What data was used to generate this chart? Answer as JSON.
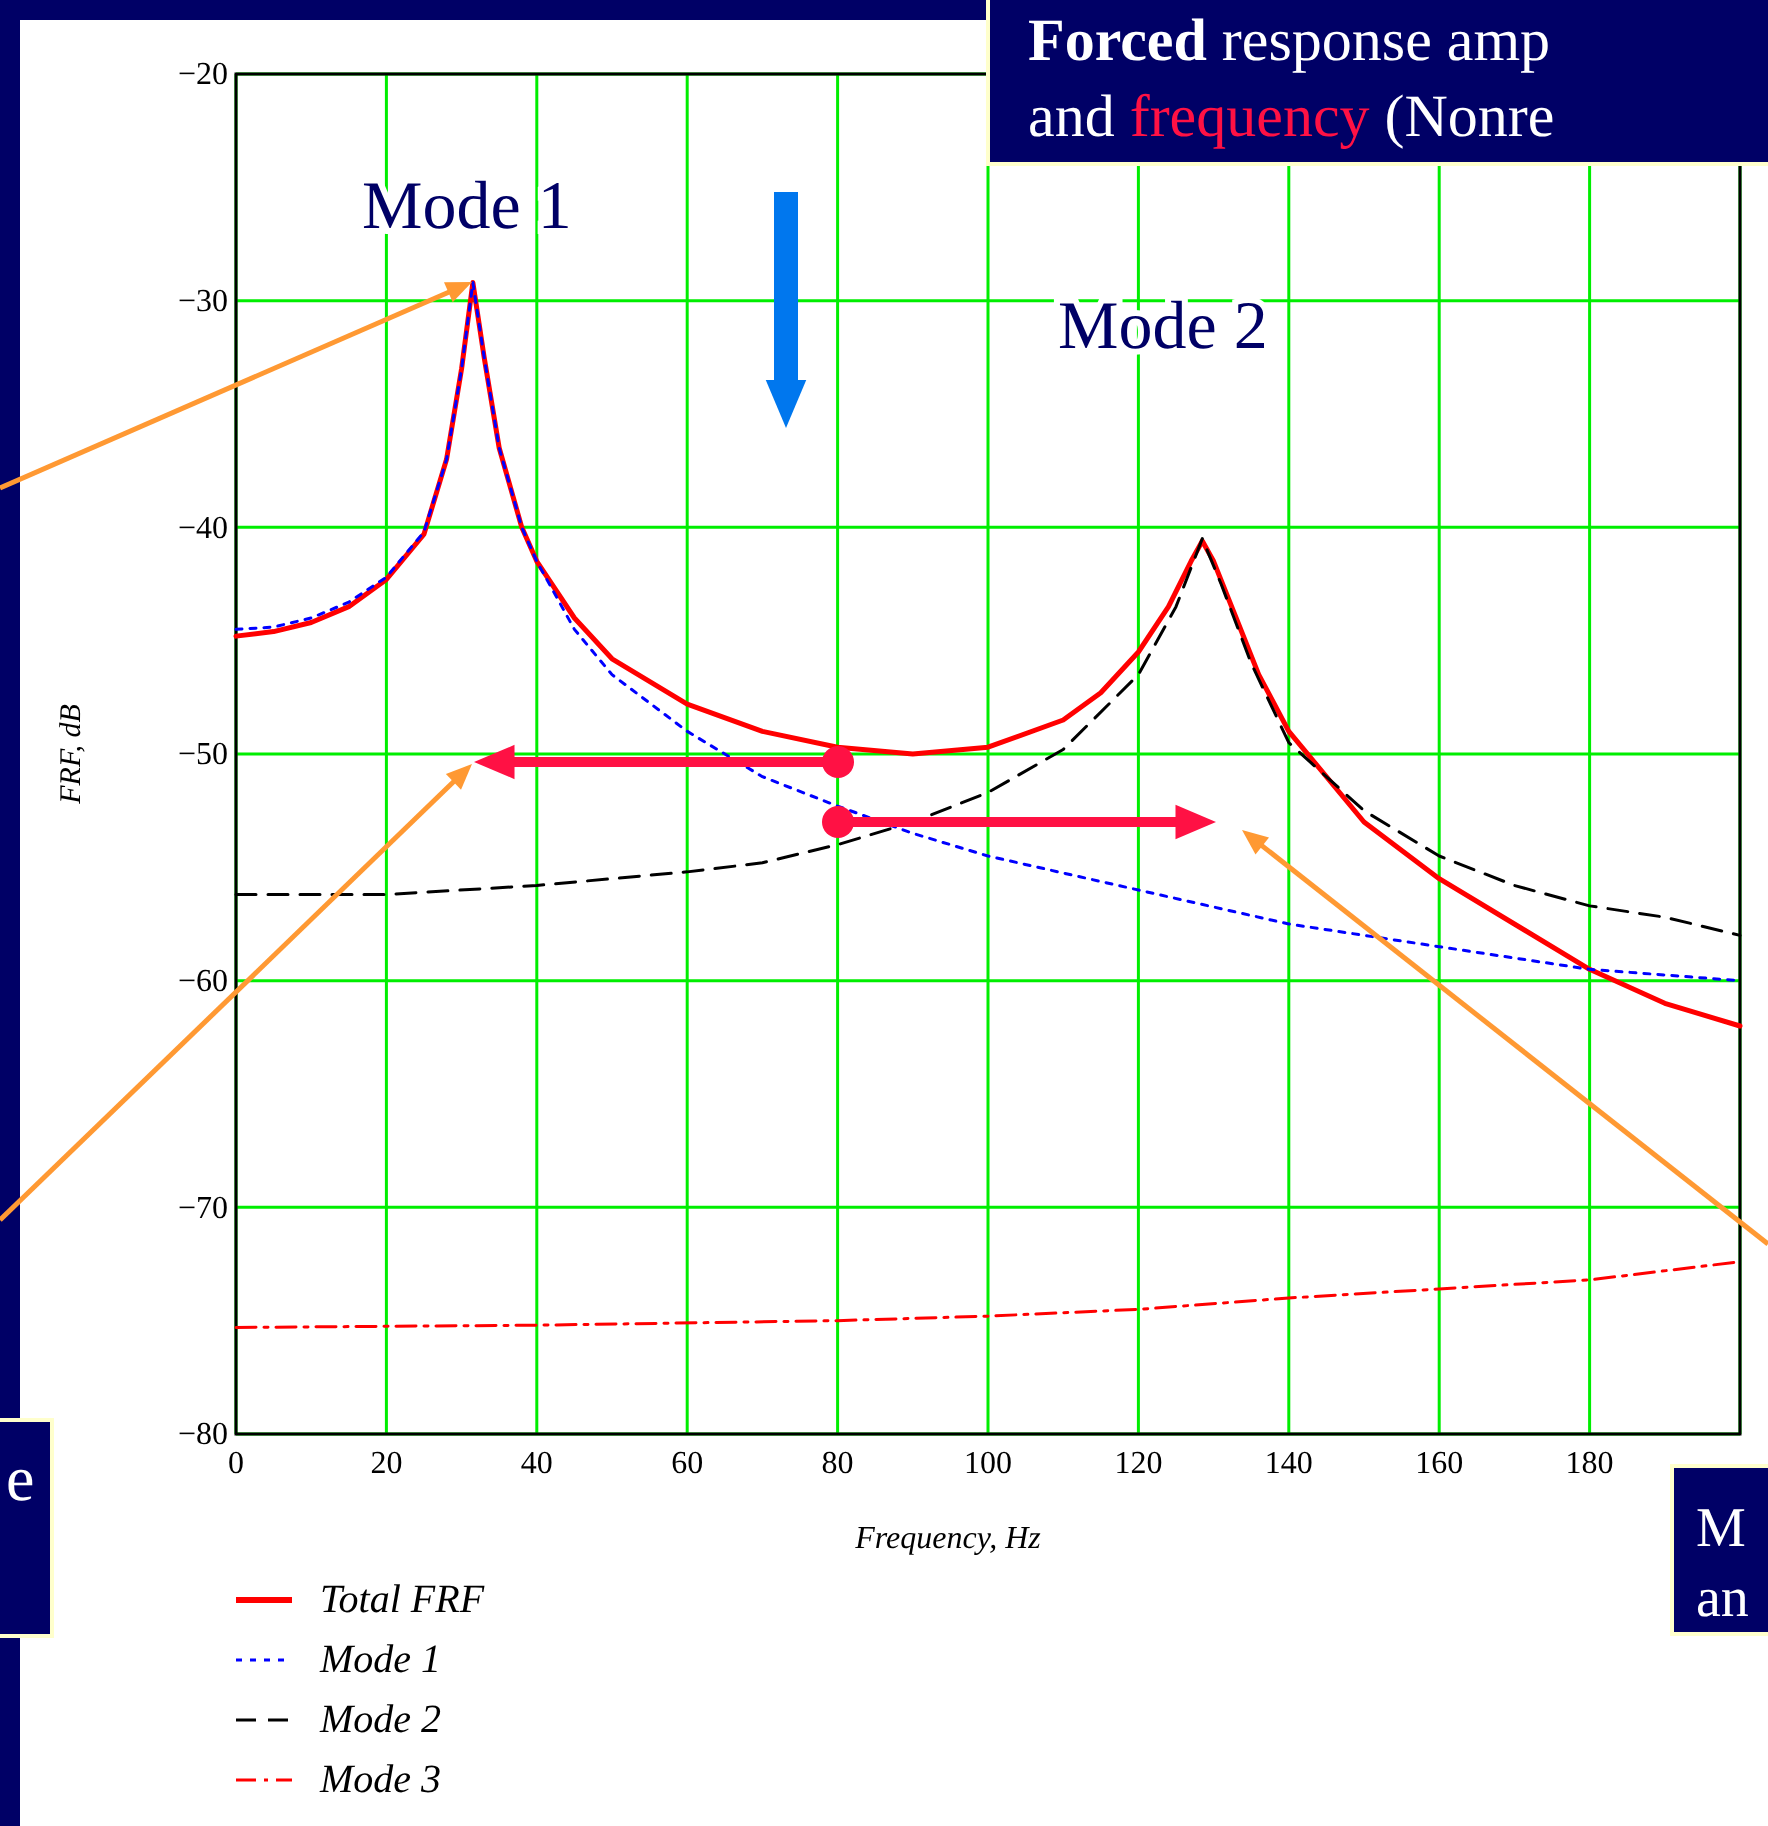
{
  "chart_data": {
    "type": "line",
    "xlabel": "Frequency, Hz",
    "ylabel": "FRF, dB",
    "annotations": [
      "Mode 1",
      "Mode 2",
      "Forced response amp",
      "and frequency (Nonre",
      "e",
      "M",
      "an"
    ],
    "xlim": [
      0,
      200
    ],
    "ylim": [
      -80,
      -20
    ],
    "xticks": [
      0,
      20,
      40,
      60,
      80,
      100,
      120,
      140,
      160,
      180
    ],
    "yticks": [
      -80,
      -70,
      -60,
      -50,
      -40,
      -30,
      -20
    ],
    "grid": true,
    "legend": "bottom",
    "marker": "none",
    "series": [
      {
        "name": "Total FRF",
        "color": "#ff0000",
        "line_style": "solid",
        "x": [
          0,
          5,
          10,
          15,
          20,
          25,
          28,
          30,
          31.5,
          33,
          35,
          38,
          40,
          45,
          50,
          60,
          70,
          80,
          90,
          100,
          110,
          115,
          120,
          124,
          127,
          128.5,
          130,
          133,
          136,
          140,
          150,
          160,
          170,
          180,
          190,
          200
        ],
        "values": [
          -44.8,
          -44.6,
          -44.2,
          -43.5,
          -42.3,
          -40.3,
          -37,
          -33,
          -29.2,
          -32.5,
          -36.5,
          -40,
          -41.5,
          -44,
          -45.8,
          -47.8,
          -49,
          -49.7,
          -50,
          -49.7,
          -48.5,
          -47.3,
          -45.5,
          -43.5,
          -41.5,
          -40.6,
          -41.5,
          -44,
          -46.5,
          -49,
          -53,
          -55.5,
          -57.5,
          -59.5,
          -61,
          -62
        ]
      },
      {
        "name": "Mode 1",
        "color": "#0000ff",
        "line_style": "dotted",
        "x": [
          0,
          5,
          10,
          15,
          20,
          25,
          28,
          30,
          31.5,
          33,
          35,
          38,
          40,
          45,
          50,
          60,
          70,
          80,
          90,
          100,
          120,
          140,
          160,
          180,
          200
        ],
        "values": [
          -44.5,
          -44.4,
          -44,
          -43.3,
          -42.2,
          -40.2,
          -37,
          -33,
          -29.2,
          -32.5,
          -36.5,
          -40,
          -41.5,
          -44.5,
          -46.5,
          -49,
          -51,
          -52.3,
          -53.5,
          -54.5,
          -56,
          -57.5,
          -58.5,
          -59.5,
          -60
        ]
      },
      {
        "name": "Mode 2",
        "color": "#000000",
        "line_style": "dashed",
        "x": [
          0,
          20,
          40,
          60,
          70,
          80,
          90,
          100,
          110,
          120,
          125,
          128.5,
          131,
          135,
          140,
          150,
          160,
          170,
          180,
          190,
          200
        ],
        "values": [
          -56.2,
          -56.2,
          -55.8,
          -55.2,
          -54.8,
          -54,
          -53,
          -51.7,
          -49.8,
          -46.5,
          -43.5,
          -40.5,
          -42.5,
          -46,
          -49.5,
          -52.5,
          -54.5,
          -55.8,
          -56.7,
          -57.2,
          -58
        ]
      },
      {
        "name": "Mode 3",
        "color": "#ff0000",
        "line_style": "dashdot",
        "x": [
          0,
          40,
          80,
          100,
          120,
          140,
          160,
          180,
          200
        ],
        "values": [
          -75.3,
          -75.2,
          -75,
          -74.8,
          -74.5,
          -74,
          -73.6,
          -73.2,
          -72.4
        ]
      }
    ]
  }
}
